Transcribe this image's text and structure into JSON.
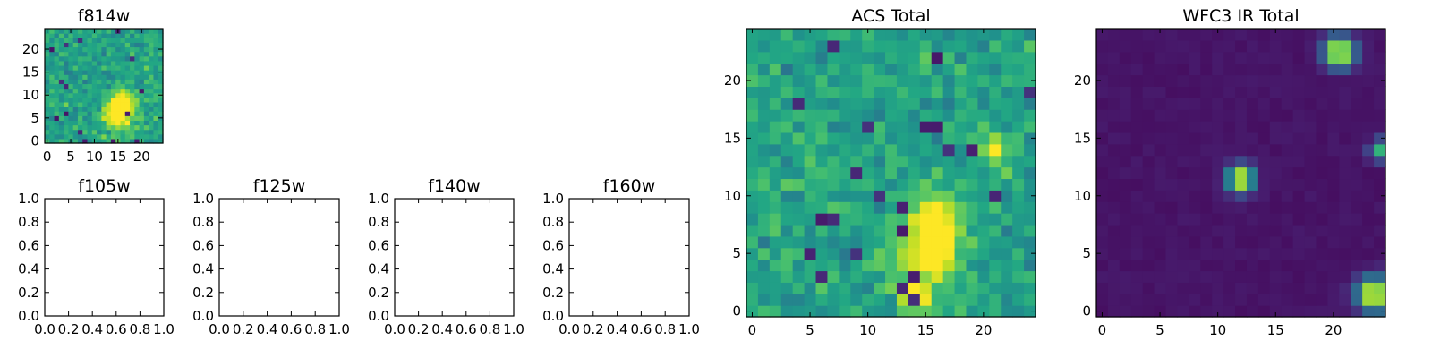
{
  "chart_data": [
    {
      "type": "heatmap",
      "title": "f814w",
      "colormap": "viridis",
      "xlim": [
        -0.5,
        24.5
      ],
      "ylim": [
        -0.5,
        24.5
      ],
      "xticks": [
        0,
        5,
        10,
        15,
        20
      ],
      "yticks": [
        0,
        5,
        10,
        15,
        20
      ],
      "features": [
        {
          "x": 15,
          "y": 6,
          "sigma": 2.2,
          "value": 0.55
        },
        {
          "x": 16,
          "y": 9,
          "sigma": 1.8,
          "value": 0.35
        }
      ]
    },
    {
      "type": "heatmap",
      "title": "f105w",
      "empty": true,
      "xlim": [
        0,
        1
      ],
      "ylim": [
        0,
        1
      ],
      "xticks": [
        "0.0",
        "0.2",
        "0.4",
        "0.6",
        "0.8",
        "1.0"
      ],
      "yticks": [
        "0.0",
        "0.2",
        "0.4",
        "0.6",
        "0.8",
        "1.0"
      ]
    },
    {
      "type": "heatmap",
      "title": "f125w",
      "empty": true,
      "xlim": [
        0,
        1
      ],
      "ylim": [
        0,
        1
      ],
      "xticks": [
        "0.0",
        "0.2",
        "0.4",
        "0.6",
        "0.8",
        "1.0"
      ],
      "yticks": [
        "0.0",
        "0.2",
        "0.4",
        "0.6",
        "0.8",
        "1.0"
      ]
    },
    {
      "type": "heatmap",
      "title": "f140w",
      "empty": true,
      "xlim": [
        0,
        1
      ],
      "ylim": [
        0,
        1
      ],
      "xticks": [
        "0.0",
        "0.2",
        "0.4",
        "0.6",
        "0.8",
        "1.0"
      ],
      "yticks": [
        "0.0",
        "0.2",
        "0.4",
        "0.6",
        "0.8",
        "1.0"
      ]
    },
    {
      "type": "heatmap",
      "title": "f160w",
      "empty": true,
      "xlim": [
        0,
        1
      ],
      "ylim": [
        0,
        1
      ],
      "xticks": [
        "0.0",
        "0.2",
        "0.4",
        "0.6",
        "0.8",
        "1.0"
      ],
      "yticks": [
        "0.0",
        "0.2",
        "0.4",
        "0.6",
        "0.8",
        "1.0"
      ]
    },
    {
      "type": "heatmap",
      "title": "ACS Total",
      "colormap": "viridis",
      "xlim": [
        -0.5,
        24.5
      ],
      "ylim": [
        -0.5,
        24.5
      ],
      "xticks": [
        0,
        5,
        10,
        15,
        20
      ],
      "yticks": [
        0,
        5,
        10,
        15,
        20
      ],
      "features": [
        {
          "x": 15,
          "y": 5,
          "sigma": 2.0,
          "value": 0.5
        },
        {
          "x": 16,
          "y": 8,
          "sigma": 1.6,
          "value": 0.35
        },
        {
          "x": 14,
          "y": 1,
          "sigma": 0.9,
          "value": 0.45
        },
        {
          "x": 21,
          "y": 14,
          "sigma": 0.8,
          "value": 0.5
        }
      ]
    },
    {
      "type": "heatmap",
      "title": "WFC3 IR Total",
      "colormap": "viridis",
      "xlim": [
        -0.5,
        24.5
      ],
      "ylim": [
        -0.5,
        24.5
      ],
      "xticks": [
        0,
        5,
        10,
        15,
        20
      ],
      "yticks": [
        0,
        5,
        10,
        15,
        20
      ],
      "features": [
        {
          "x": 12,
          "y": 11.5,
          "sigma": 0.8,
          "value": 0.95
        },
        {
          "x": 20.5,
          "y": 22.5,
          "sigma": 0.9,
          "value": 1.0
        },
        {
          "x": 23.5,
          "y": 1.5,
          "sigma": 1.0,
          "value": 1.0
        },
        {
          "x": 24,
          "y": 14,
          "sigma": 0.6,
          "value": 0.6
        }
      ]
    }
  ]
}
